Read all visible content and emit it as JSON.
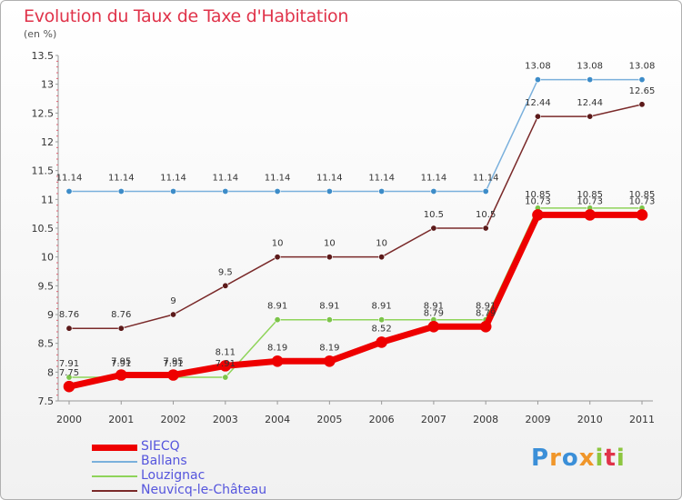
{
  "header": {
    "title": "Evolution du Taux de Taxe d'Habitation",
    "unit": "(en %)"
  },
  "logo": {
    "text": "Proxiti",
    "colors": [
      "#3b8fd8",
      "#f0962a",
      "#3b8fd8",
      "#f0962a",
      "#8dc63f",
      "#e0334a",
      "#8dc63f"
    ]
  },
  "chart_data": {
    "type": "line",
    "x": [
      "2000",
      "2001",
      "2002",
      "2003",
      "2004",
      "2005",
      "2006",
      "2007",
      "2008",
      "2009",
      "2010",
      "2011"
    ],
    "ylim": [
      7.5,
      13.5
    ],
    "yticks": [
      "7.5",
      "8",
      "8.5",
      "9",
      "9.5",
      "10",
      "10.5",
      "11",
      "11.5",
      "12",
      "12.5",
      "13",
      "13.5"
    ],
    "grid": false,
    "legend_position": "bottom-left",
    "series": [
      {
        "name": "Louzignac",
        "color": "#8fd45a",
        "marker": "#7cc44a",
        "width": 1.5,
        "values": [
          7.91,
          7.91,
          7.91,
          7.91,
          8.91,
          8.91,
          8.91,
          8.91,
          8.91,
          10.85,
          10.85,
          10.85
        ],
        "labels": [
          "7.91",
          "7.91",
          "7.91",
          "7.91",
          "8.91",
          "8.91",
          "8.91",
          "8.91",
          "8.91",
          "10.85",
          "10.85",
          "10.85"
        ]
      },
      {
        "name": "Ballans",
        "color": "#7ab0dc",
        "marker": "#3d8cc8",
        "width": 1.5,
        "values": [
          11.14,
          11.14,
          11.14,
          11.14,
          11.14,
          11.14,
          11.14,
          11.14,
          11.14,
          13.08,
          13.08,
          13.08
        ],
        "labels": [
          "11.14",
          "11.14",
          "11.14",
          "11.14",
          "11.14",
          "11.14",
          "11.14",
          "11.14",
          "11.14",
          "13.08",
          "13.08",
          "13.08"
        ]
      },
      {
        "name": "Neuvicq-le-Château",
        "color": "#7a2a2a",
        "marker": "#5c1a1a",
        "width": 1.5,
        "values": [
          8.76,
          8.76,
          9,
          9.5,
          10,
          10,
          10,
          10.5,
          10.5,
          12.44,
          12.44,
          12.65
        ],
        "labels": [
          "8.76",
          "8.76",
          "9",
          "9.5",
          "10",
          "10",
          "10",
          "10.5",
          "10.5",
          "12.44",
          "12.44",
          "12.65"
        ]
      },
      {
        "name": "SIECQ",
        "color": "#ee0000",
        "marker": "#ee0000",
        "width": 7,
        "values": [
          7.75,
          7.95,
          7.95,
          8.11,
          8.19,
          8.19,
          8.52,
          8.79,
          8.79,
          10.73,
          10.73,
          10.73
        ],
        "labels": [
          "7.75",
          "7.95",
          "7.95",
          "8.11",
          "8.19",
          "8.19",
          "8.52",
          "8.79",
          "8.79",
          "10.73",
          "10.73",
          "10.73"
        ]
      }
    ],
    "legend": [
      {
        "name": "SIECQ",
        "color": "#ee0000",
        "width": 7
      },
      {
        "name": "Ballans",
        "color": "#7ab0dc",
        "width": 2
      },
      {
        "name": "Louzignac",
        "color": "#8fd45a",
        "width": 2
      },
      {
        "name": "Neuvicq-le-Château",
        "color": "#7a2a2a",
        "width": 2
      }
    ]
  }
}
